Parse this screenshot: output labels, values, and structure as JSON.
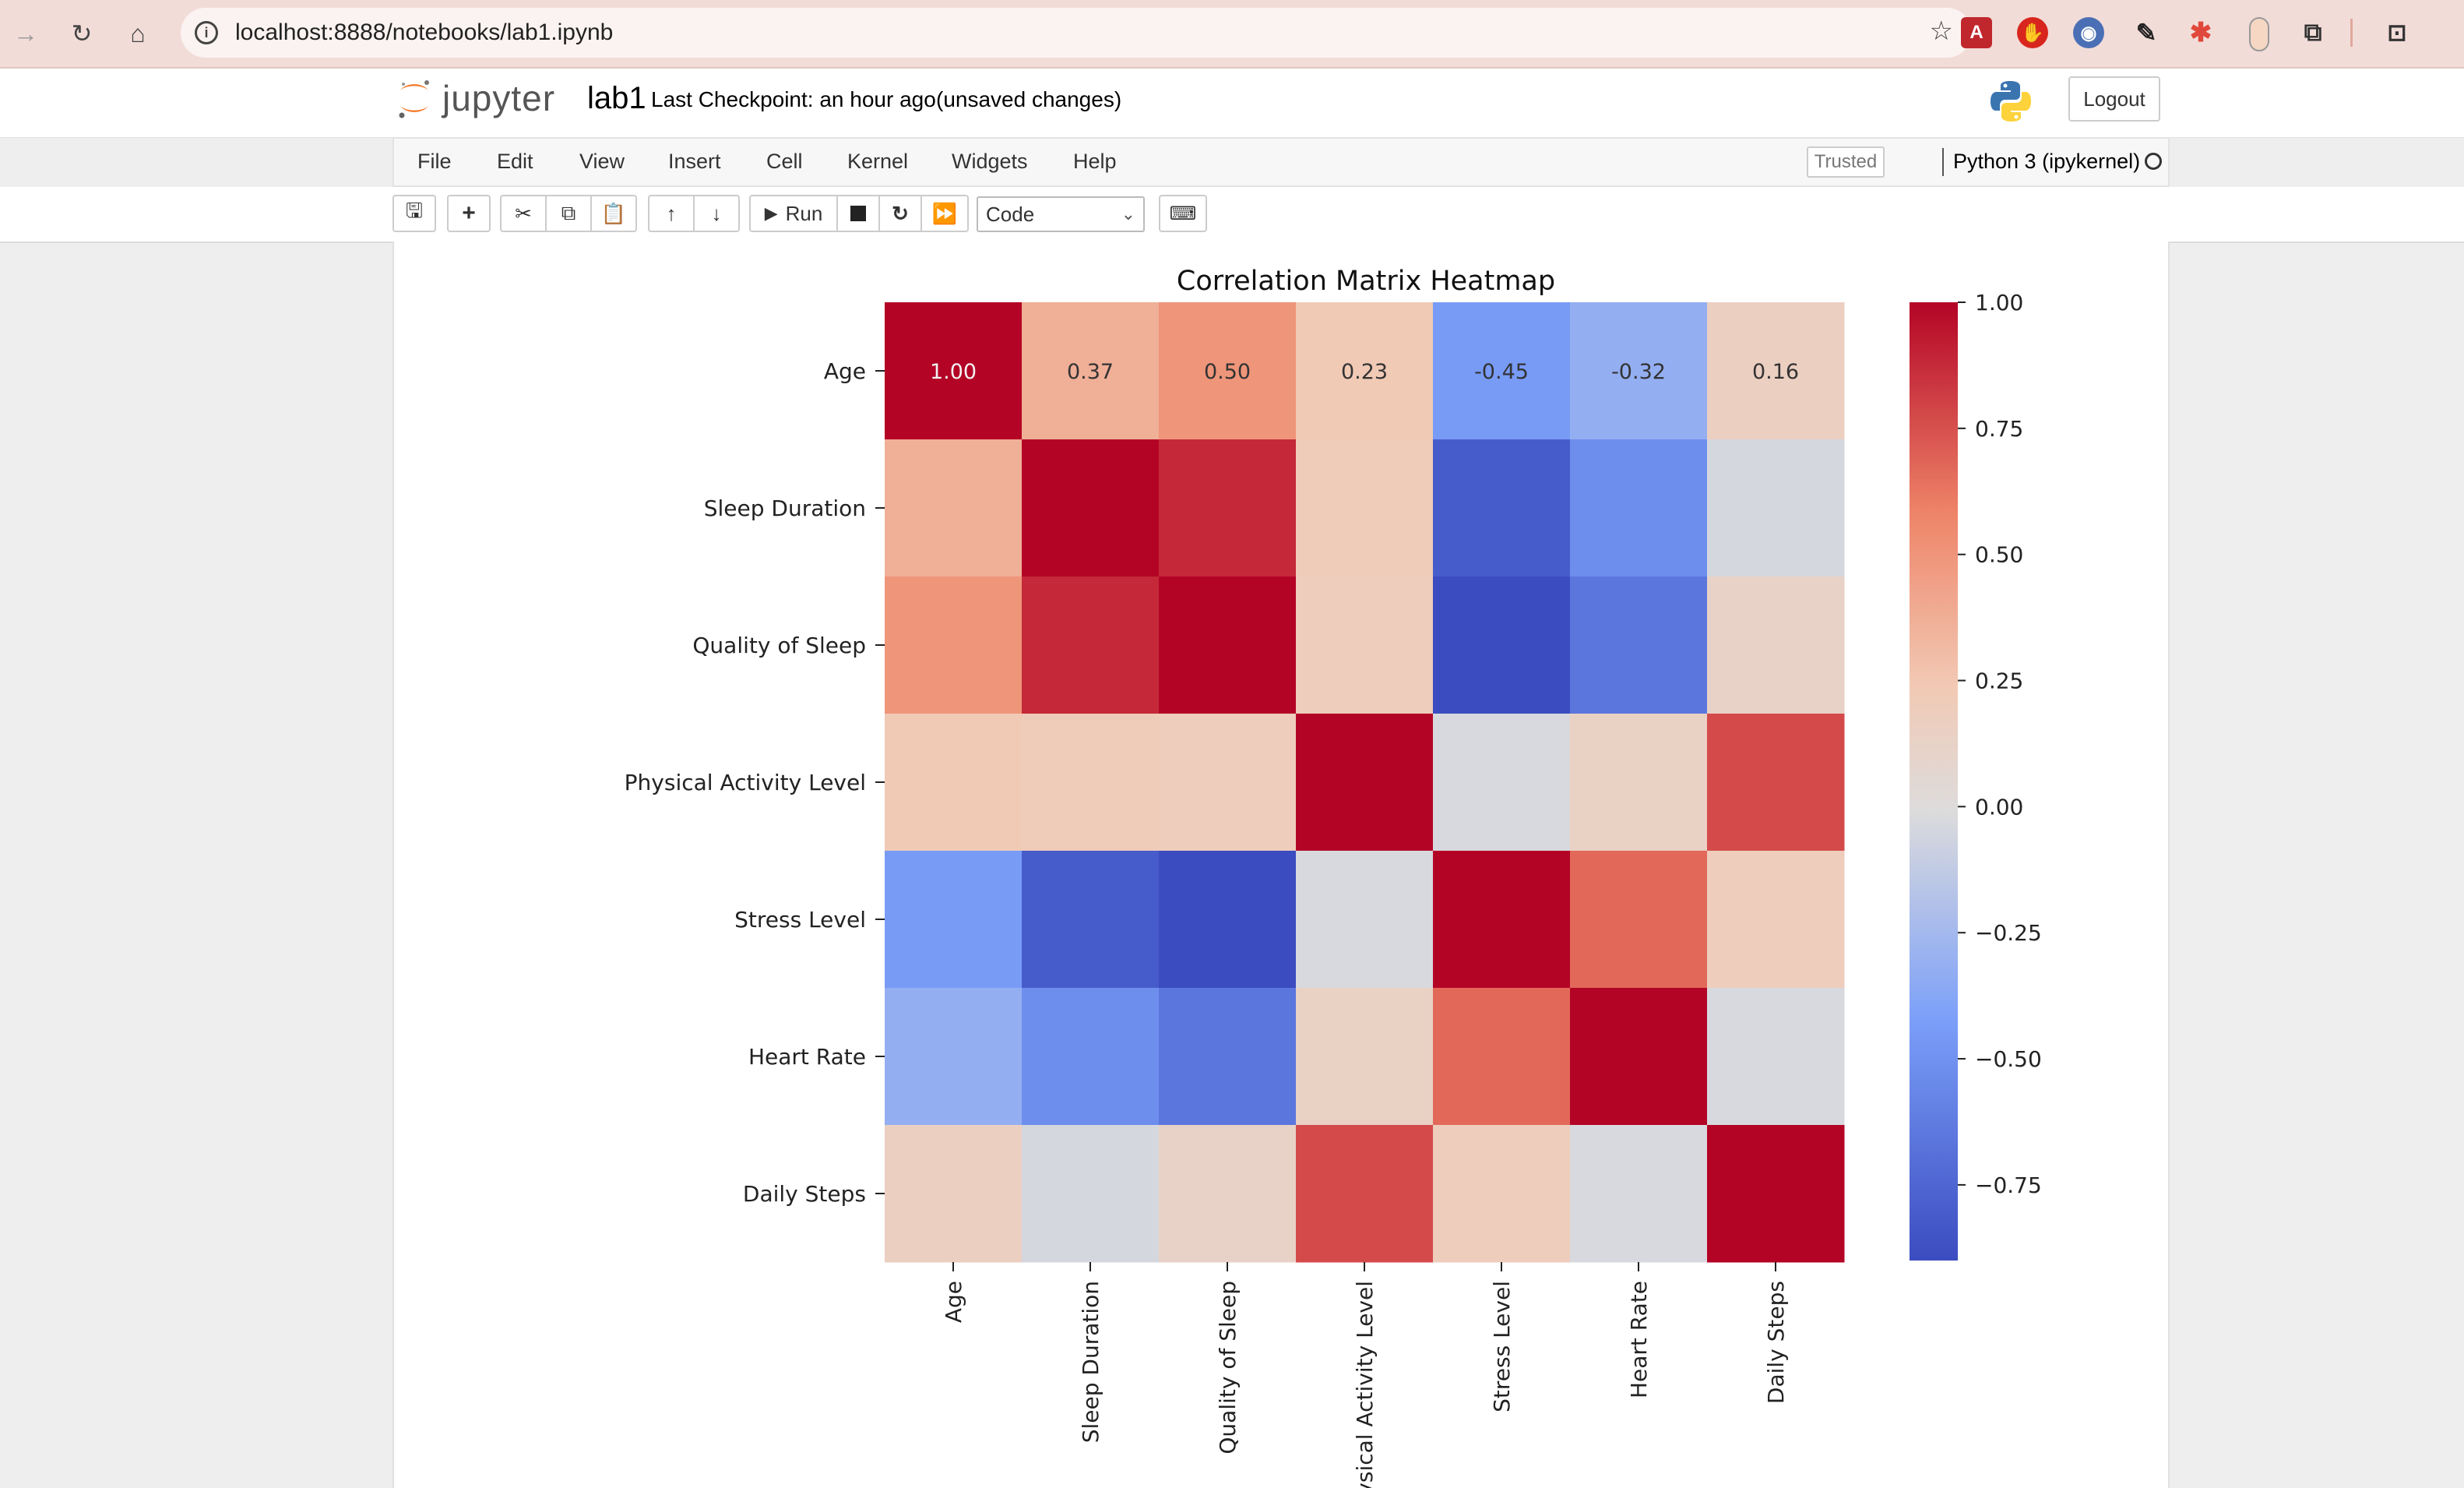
{
  "browser": {
    "url": "localhost:8888/notebooks/lab1.ipynb",
    "icons": [
      "back-arrow-icon",
      "reload-icon",
      "home-icon",
      "info-icon",
      "bookmark-star-icon",
      "pdf-extension-icon",
      "adblock-extension-icon",
      "globe-extension-icon",
      "eyedropper-extension-icon",
      "puzzle-color-extension-icon",
      "capsule-extension-icon",
      "extensions-icon",
      "tab-search-icon"
    ]
  },
  "jupyter": {
    "logo_text": "jupyter",
    "notebook_name": "lab1",
    "checkpoint": "Last Checkpoint: an hour ago",
    "unsaved": "(unsaved changes)",
    "logout_label": "Logout",
    "menu": [
      "File",
      "Edit",
      "View",
      "Insert",
      "Cell",
      "Kernel",
      "Widgets",
      "Help"
    ],
    "trusted_label": "Trusted",
    "kernel_name": "Python 3 (ipykernel)",
    "toolbar": {
      "run_label": "Run",
      "cell_type": "Code",
      "icons": [
        "save-icon",
        "add-cell-icon",
        "cut-icon",
        "copy-icon",
        "paste-icon",
        "move-up-icon",
        "move-down-icon",
        "run-icon",
        "stop-icon",
        "restart-icon",
        "fast-forward-icon",
        "keyboard-icon"
      ]
    }
  },
  "chart_data": {
    "type": "heatmap",
    "title": "Correlation Matrix Heatmap",
    "colormap": "coolwarm",
    "labels": [
      "Age",
      "Sleep Duration",
      "Quality of Sleep",
      "Physical Activity Level",
      "Stress Level",
      "Heart Rate",
      "Daily Steps"
    ],
    "matrix": [
      [
        1.0,
        0.37,
        0.5,
        0.23,
        -0.45,
        -0.32,
        0.16
      ],
      [
        0.37,
        1.0,
        0.88,
        0.21,
        -0.81,
        -0.52,
        -0.04
      ],
      [
        0.5,
        0.88,
        1.0,
        0.19,
        -0.9,
        -0.66,
        0.12
      ],
      [
        0.23,
        0.21,
        0.19,
        1.0,
        -0.03,
        0.14,
        0.77
      ],
      [
        -0.45,
        -0.81,
        -0.9,
        -0.03,
        1.0,
        0.67,
        0.19
      ],
      [
        -0.32,
        -0.52,
        -0.66,
        0.14,
        0.67,
        1.0,
        -0.03
      ],
      [
        0.16,
        -0.04,
        0.12,
        0.77,
        0.19,
        -0.03,
        1.0
      ]
    ],
    "annotations_shown": [
      [
        1.0,
        0.37,
        0.5,
        0.23,
        -0.45,
        -0.32,
        0.16
      ]
    ],
    "colorbar": {
      "range": [
        -0.9,
        1.0
      ],
      "ticks": [
        1.0,
        0.75,
        0.5,
        0.25,
        0.0,
        -0.25,
        -0.5,
        -0.75
      ],
      "tick_labels": [
        "1.00",
        "0.75",
        "0.50",
        "0.25",
        "0.00",
        "−0.25",
        "−0.50",
        "−0.75"
      ]
    }
  }
}
